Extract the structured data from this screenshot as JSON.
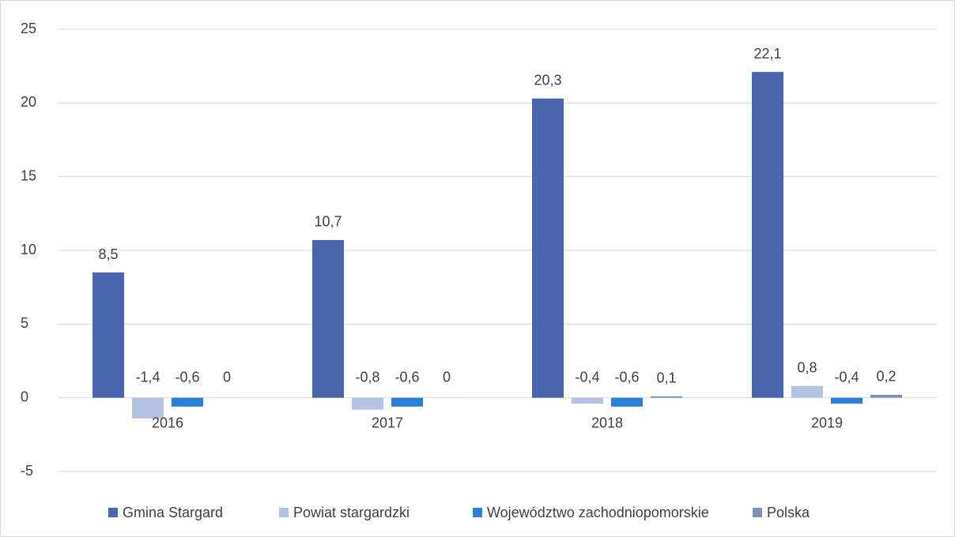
{
  "chart_data": {
    "type": "bar",
    "categories": [
      "2016",
      "2017",
      "2018",
      "2019"
    ],
    "series": [
      {
        "name": "Gmina Stargard",
        "color": "#4865ad",
        "values": [
          8.5,
          10.7,
          20.3,
          22.1
        ],
        "value_labels": [
          "8,5",
          "10,7",
          "20,3",
          "22,1"
        ]
      },
      {
        "name": "Powiat stargardzki",
        "color": "#b4c3e3",
        "values": [
          -1.4,
          -0.8,
          -0.4,
          0.8
        ],
        "value_labels": [
          "-1,4",
          "-0,8",
          "-0,4",
          "0,8"
        ]
      },
      {
        "name": "Województwo zachodniopomorskie",
        "color": "#2a7fd8",
        "values": [
          -0.6,
          -0.6,
          -0.6,
          -0.4
        ],
        "value_labels": [
          "-0,6",
          "-0,6",
          "-0,6",
          "-0,4"
        ]
      },
      {
        "name": "Polska",
        "color": "#7f92b0",
        "values": [
          0,
          0,
          0.1,
          0.2
        ],
        "value_labels": [
          "0",
          "0",
          "0,1",
          "0,2"
        ]
      }
    ],
    "ylim": [
      -5,
      25
    ],
    "yticks": [
      -5,
      0,
      5,
      10,
      15,
      20,
      25
    ],
    "grid": true,
    "legend": "bottom"
  }
}
